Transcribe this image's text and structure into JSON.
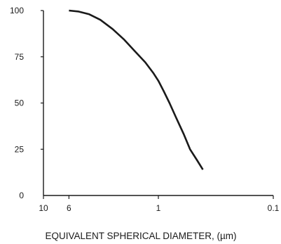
{
  "chart_data": {
    "type": "line",
    "title": "",
    "xlabel": "EQUIVALENT SPHERICAL DIAMETER, (µm)",
    "ylabel": "",
    "x_scale": "log",
    "x_reversed": true,
    "xlim": [
      10,
      0.1
    ],
    "ylim": [
      0,
      100
    ],
    "x_ticks": [
      {
        "value": 10,
        "label": "10"
      },
      {
        "value": 6,
        "label": "6"
      },
      {
        "value": 1,
        "label": "1"
      },
      {
        "value": 0.1,
        "label": "0.1"
      }
    ],
    "y_ticks": [
      {
        "value": 0,
        "label": "0"
      },
      {
        "value": 25,
        "label": "25"
      },
      {
        "value": 50,
        "label": "50"
      },
      {
        "value": 75,
        "label": "75"
      },
      {
        "value": 100,
        "label": "100"
      }
    ],
    "grid": false,
    "series": [
      {
        "x": [
          6.0,
          5.0,
          4.0,
          3.2,
          2.5,
          2.0,
          1.6,
          1.3,
          1.1,
          1.0,
          0.9,
          0.8,
          0.7,
          0.6,
          0.53,
          0.46,
          0.41
        ],
        "y": [
          100,
          99.5,
          98,
          95,
          90,
          84.5,
          78,
          72,
          66,
          62,
          56.5,
          50,
          42,
          33,
          25,
          19,
          14
        ]
      }
    ]
  }
}
